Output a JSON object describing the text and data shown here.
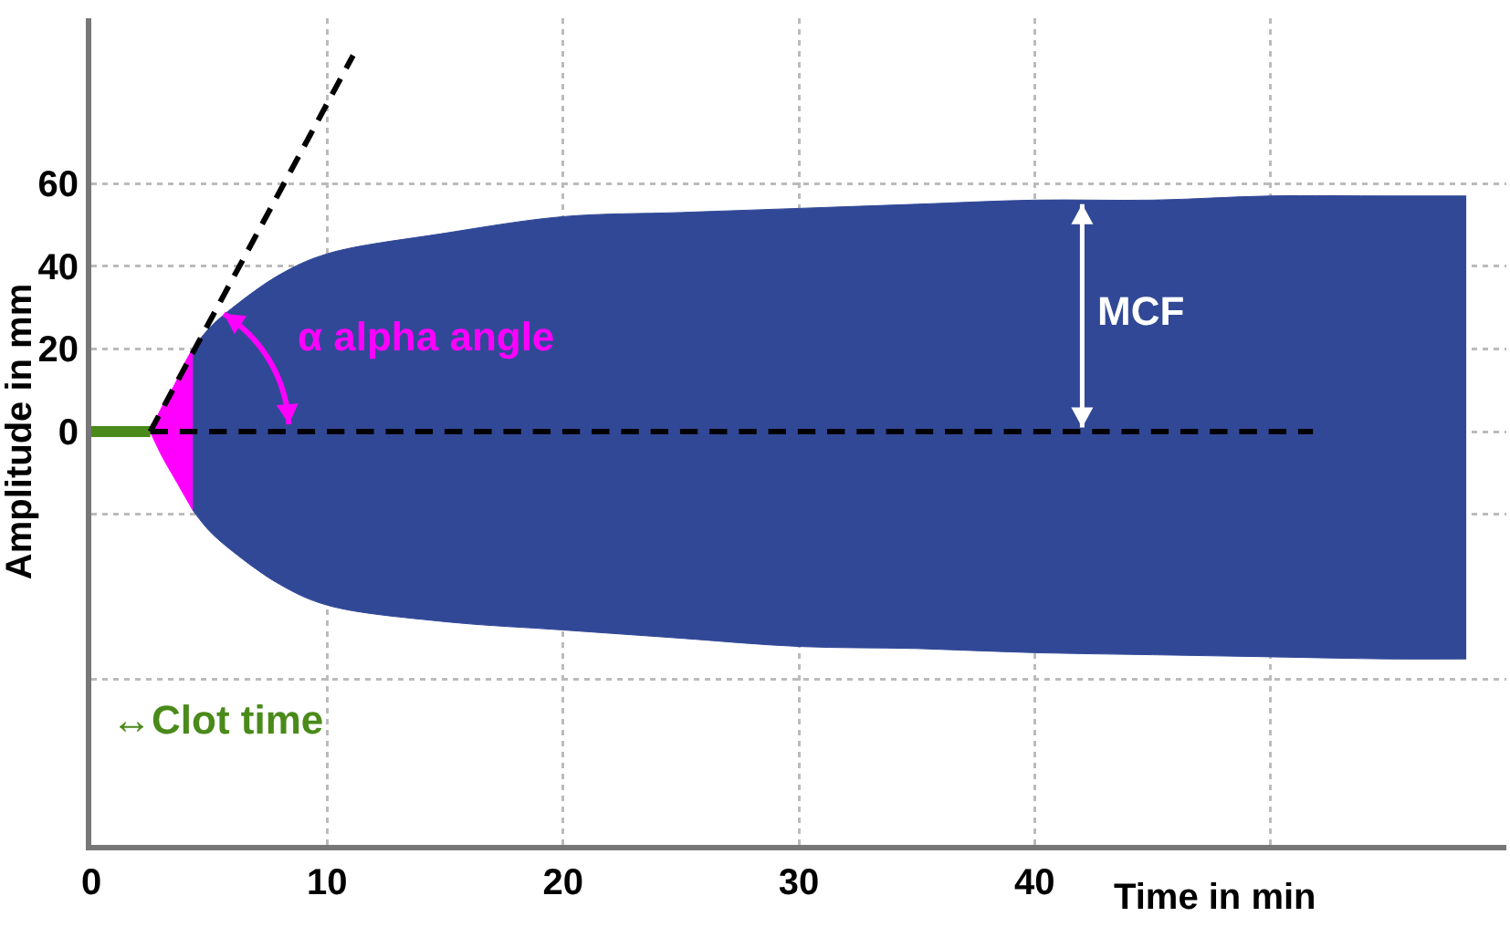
{
  "chart_data": {
    "type": "area",
    "xlabel": "Time in min",
    "ylabel": "Amplitude in mm",
    "xlim": [
      0,
      60
    ],
    "ylim": [
      -100,
      100
    ],
    "xticks": [
      0,
      10,
      20,
      30,
      40,
      {
        "value": 50,
        "label": null
      }
    ],
    "yticks": [
      {
        "value": -60,
        "label": null
      },
      {
        "value": -20,
        "label": null
      },
      0,
      20,
      40,
      60
    ],
    "grid": true,
    "series": [
      {
        "color": "#314897",
        "x": [
          4.3,
          5,
          6,
          8,
          10,
          15,
          20,
          25,
          30,
          35,
          40,
          45,
          50,
          55,
          58.3
        ],
        "values": [
          20,
          25,
          30,
          38,
          43,
          48,
          52,
          53,
          54,
          55,
          56,
          56,
          57,
          57,
          57
        ]
      },
      {
        "color": "#314897",
        "x": [
          4.3,
          5,
          6,
          8,
          10,
          15,
          20,
          25,
          30,
          35,
          40,
          45,
          50,
          55,
          58.3
        ],
        "values": [
          -19,
          -24,
          -29,
          -37,
          -42,
          -46,
          -48,
          -50,
          -52,
          -52.5,
          -53.5,
          -54,
          -54.5,
          -55,
          -55
        ]
      },
      {
        "color": "#ff00ff",
        "x": [
          2.5,
          3,
          3.5,
          4,
          4.3
        ],
        "values": [
          0,
          6,
          11,
          17,
          20
        ]
      },
      {
        "color": "#ff00ff",
        "x": [
          2.5,
          3,
          3.5,
          4,
          4.3
        ],
        "values": [
          0,
          -6,
          -11,
          -16,
          -19
        ]
      },
      {
        "type": "line",
        "color": "#4a8a1a",
        "x": [
          0,
          2.5
        ],
        "values": [
          0,
          0
        ]
      },
      {
        "type": "line",
        "color": "#000000",
        "line_style": "dashed",
        "x": [
          2.5,
          11.1
        ],
        "values": [
          0,
          91
        ]
      },
      {
        "type": "line",
        "color": "#000000",
        "line_style": "dashed",
        "x": [
          2.5,
          51.8
        ],
        "values": [
          0,
          0
        ]
      }
    ],
    "annotations": [
      "α alpha angle",
      "MCF",
      "↔Clot time"
    ]
  }
}
